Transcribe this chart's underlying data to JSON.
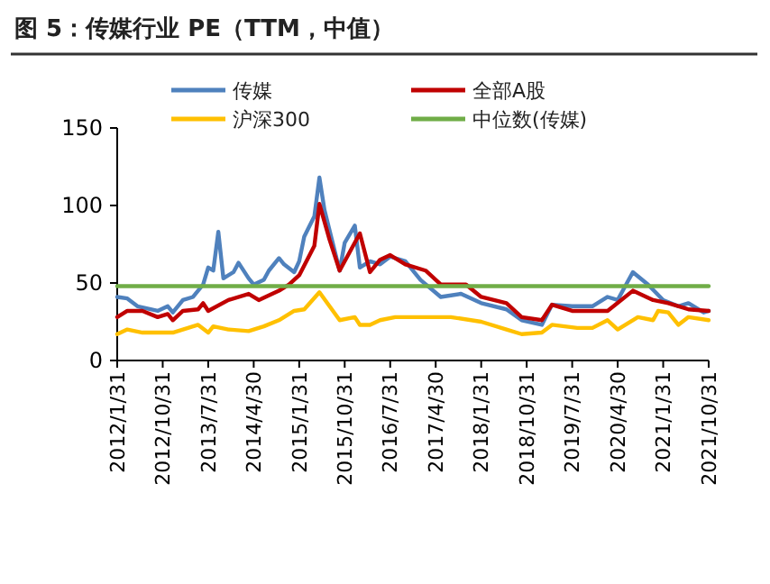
{
  "chart_data": {
    "type": "line",
    "title": "图 5：传媒行业 PE（TTM，中值）",
    "series": [
      {
        "name": "传媒",
        "color": "#4f81bd",
        "x": [
          "2012-01",
          "2012-03",
          "2012-05",
          "2012-09",
          "2012-11",
          "2012-12",
          "2013-02",
          "2013-04",
          "2013-06",
          "2013-07",
          "2013-08",
          "2013-09",
          "2013-10",
          "2013-12",
          "2014-01",
          "2014-03",
          "2014-04",
          "2014-06",
          "2014-07",
          "2014-09",
          "2014-10",
          "2014-12",
          "2015-01",
          "2015-02",
          "2015-04",
          "2015-05",
          "2015-06",
          "2015-09",
          "2015-10",
          "2015-12",
          "2016-01",
          "2016-03",
          "2016-05",
          "2016-07",
          "2016-10",
          "2017-01",
          "2017-05",
          "2017-09",
          "2018-01",
          "2018-06",
          "2018-09",
          "2019-01",
          "2019-03",
          "2019-07",
          "2019-11",
          "2020-02",
          "2020-04",
          "2020-06",
          "2020-07",
          "2020-10",
          "2021-01",
          "2021-04",
          "2021-06",
          "2021-09",
          "2021-10"
        ],
        "values": [
          41,
          40,
          35,
          32,
          35,
          31,
          39,
          41,
          49,
          60,
          58,
          83,
          53,
          57,
          63,
          53,
          49,
          52,
          58,
          66,
          62,
          57,
          64,
          80,
          93,
          118,
          97,
          58,
          76,
          87,
          60,
          64,
          62,
          67,
          64,
          52,
          41,
          43,
          37,
          33,
          26,
          23,
          36,
          35,
          35,
          41,
          39,
          51,
          57,
          49,
          39,
          35,
          37,
          31,
          32
        ]
      },
      {
        "name": "全部A股",
        "color": "#c00000",
        "x": [
          "2012-01",
          "2012-03",
          "2012-06",
          "2012-09",
          "2012-11",
          "2012-12",
          "2013-02",
          "2013-05",
          "2013-06",
          "2013-07",
          "2013-11",
          "2014-03",
          "2014-05",
          "2014-09",
          "2014-11",
          "2015-01",
          "2015-04",
          "2015-05",
          "2015-07",
          "2015-09",
          "2015-12",
          "2016-01",
          "2016-03",
          "2016-05",
          "2016-07",
          "2016-10",
          "2017-02",
          "2017-05",
          "2017-10",
          "2018-01",
          "2018-06",
          "2018-09",
          "2019-01",
          "2019-03",
          "2019-07",
          "2019-10",
          "2020-02",
          "2020-07",
          "2020-11",
          "2021-02",
          "2021-06",
          "2021-10"
        ],
        "values": [
          28,
          32,
          32,
          28,
          30,
          26,
          32,
          33,
          37,
          32,
          39,
          43,
          39,
          45,
          49,
          55,
          74,
          101,
          78,
          58,
          76,
          82,
          57,
          65,
          68,
          62,
          58,
          49,
          49,
          41,
          37,
          28,
          26,
          36,
          32,
          32,
          32,
          45,
          39,
          37,
          33,
          32
        ]
      },
      {
        "name": "沪深300",
        "color": "#ffc000",
        "x": [
          "2012-01",
          "2012-03",
          "2012-06",
          "2012-10",
          "2012-12",
          "2013-02",
          "2013-05",
          "2013-07",
          "2013-08",
          "2013-11",
          "2014-03",
          "2014-06",
          "2014-09",
          "2014-12",
          "2015-02",
          "2015-05",
          "2015-07",
          "2015-09",
          "2015-12",
          "2016-01",
          "2016-03",
          "2016-05",
          "2016-08",
          "2017-01",
          "2017-07",
          "2018-01",
          "2018-06",
          "2018-09",
          "2019-01",
          "2019-03",
          "2019-08",
          "2019-11",
          "2020-02",
          "2020-04",
          "2020-08",
          "2020-11",
          "2020-12",
          "2021-02",
          "2021-04",
          "2021-06",
          "2021-10"
        ],
        "values": [
          17,
          20,
          18,
          18,
          18,
          20,
          23,
          18,
          22,
          20,
          19,
          22,
          26,
          32,
          33,
          44,
          35,
          26,
          28,
          23,
          23,
          26,
          28,
          28,
          28,
          25,
          20,
          17,
          18,
          23,
          21,
          21,
          26,
          20,
          28,
          26,
          32,
          31,
          23,
          28,
          26
        ]
      },
      {
        "name": "中位数(传媒)",
        "color": "#70ad47",
        "x": [
          "2012-01",
          "2021-10"
        ],
        "values": [
          48,
          48
        ]
      }
    ],
    "xlim": [
      "2012-01",
      "2021-10"
    ],
    "xticks": [
      {
        "value": "2012-01",
        "label": "2012/1/31"
      },
      {
        "value": "2012-10",
        "label": "2012/10/31"
      },
      {
        "value": "2013-07",
        "label": "2013/7/31"
      },
      {
        "value": "2014-04",
        "label": "2014/4/30"
      },
      {
        "value": "2015-01",
        "label": "2015/1/31"
      },
      {
        "value": "2015-10",
        "label": "2015/10/31"
      },
      {
        "value": "2016-07",
        "label": "2016/7/31"
      },
      {
        "value": "2017-04",
        "label": "2017/4/30"
      },
      {
        "value": "2018-01",
        "label": "2018/1/31"
      },
      {
        "value": "2018-10",
        "label": "2018/10/31"
      },
      {
        "value": "2019-07",
        "label": "2019/7/31"
      },
      {
        "value": "2020-04",
        "label": "2020/4/30"
      },
      {
        "value": "2021-01",
        "label": "2021/1/31"
      },
      {
        "value": "2021-10",
        "label": "2021/10/31"
      }
    ],
    "ylim": [
      0,
      150
    ],
    "yticks": [
      0,
      50,
      100,
      150
    ],
    "legend": "top",
    "grid": false,
    "marker": "none",
    "line_style": "solid"
  }
}
